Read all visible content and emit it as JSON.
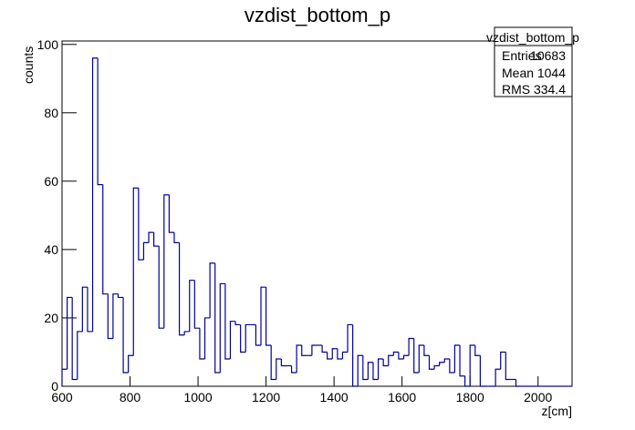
{
  "chart_data": {
    "type": "histogram",
    "title": "vzdist_bottom_p",
    "xlabel": "z[cm]",
    "ylabel": "counts",
    "bins": [
      600,
      615,
      630,
      645,
      660,
      675,
      690,
      705,
      720,
      735,
      750,
      765,
      780,
      795,
      810,
      825,
      840,
      855,
      870,
      885,
      900,
      915,
      930,
      945,
      960,
      975,
      990,
      1005,
      1020,
      1035,
      1050,
      1065,
      1080,
      1095,
      1110,
      1125,
      1140,
      1155,
      1170,
      1185,
      1200,
      1215,
      1230,
      1245,
      1260,
      1275,
      1290,
      1305,
      1320,
      1335,
      1350,
      1365,
      1380,
      1395,
      1410,
      1425,
      1440,
      1455,
      1470,
      1485,
      1500,
      1515,
      1530,
      1545,
      1560,
      1575,
      1590,
      1605,
      1620,
      1635,
      1650,
      1665,
      1680,
      1695,
      1710,
      1725,
      1740,
      1755,
      1770,
      1785,
      1800,
      1815,
      1830,
      1845,
      1860,
      1875,
      1890,
      1905,
      1920,
      1935,
      1950,
      1965,
      1980,
      1995,
      2010,
      2025,
      2040,
      2055,
      2070,
      2085,
      2100
    ],
    "values": [
      5,
      26,
      2,
      16,
      29,
      16,
      96,
      59,
      27,
      14,
      27,
      26,
      4,
      9,
      58,
      37,
      42,
      45,
      41,
      17,
      56,
      45,
      42,
      15,
      16,
      31,
      17,
      8,
      20,
      36,
      4,
      30,
      8,
      19,
      18,
      10,
      18,
      18,
      12,
      29,
      12,
      2,
      8,
      6,
      6,
      4,
      12,
      9,
      9,
      12,
      12,
      10,
      8,
      11,
      8,
      10,
      18,
      0,
      9,
      2,
      7,
      2,
      8,
      6,
      9,
      10,
      8,
      9,
      14,
      4,
      12,
      9,
      5,
      6,
      7,
      8,
      4,
      12,
      3,
      0,
      12,
      9,
      0,
      0,
      0,
      5,
      10,
      2,
      2,
      0,
      0,
      0,
      0,
      0,
      0,
      0,
      0,
      0,
      0,
      0
    ],
    "color": "#000099",
    "xlim": [
      600,
      2100
    ],
    "xticks": [
      600,
      800,
      1000,
      1200,
      1400,
      1600,
      1800,
      2000
    ],
    "ylim": [
      0,
      101
    ],
    "yticks": [
      0,
      20,
      40,
      60,
      80,
      100
    ],
    "stats": {
      "title": "vzdist_bottom_p",
      "rows": [
        {
          "label": "Entries",
          "value": 10683
        },
        {
          "label": "Mean",
          "value": 1044
        },
        {
          "label": "RMS",
          "value": 334.4
        }
      ]
    }
  }
}
